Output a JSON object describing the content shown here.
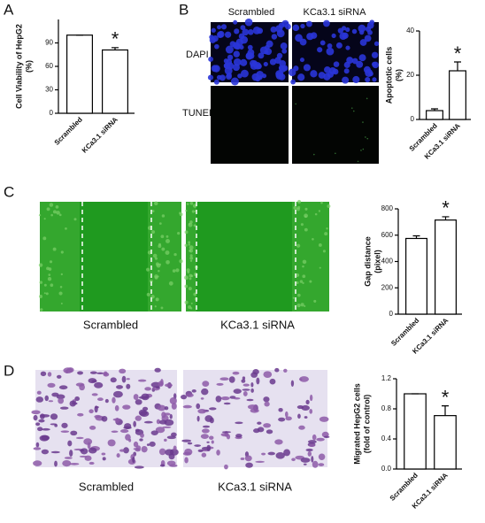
{
  "figure": {
    "panel_labels": [
      "A",
      "B",
      "C",
      "D"
    ],
    "panel_b_images": {
      "columns": [
        "Scrambled",
        "KCa3.1 siRNA"
      ],
      "rows": [
        "DAPI",
        "TUNEL"
      ]
    },
    "panel_c_images": {
      "columns": [
        "Scrambled",
        "KCa3.1 siRNA"
      ]
    },
    "panel_d_images": {
      "columns": [
        "Scrambled",
        "KCa3.1 siRNA"
      ]
    }
  },
  "chart_data": [
    {
      "type": "bar",
      "y_label": [
        "Cell Viability of HepG2",
        "(%)"
      ],
      "categories": [
        "Scrambled",
        "KCa3.1 siRNA"
      ],
      "values": [
        100,
        81
      ],
      "errors": [
        0,
        3
      ],
      "color": "#ffffff",
      "ylim": [
        0,
        120
      ],
      "yticks": [
        0,
        30,
        60,
        90
      ],
      "annotation": "*"
    },
    {
      "type": "bar",
      "y_label": [
        "Apoptotic cells",
        "(%)"
      ],
      "categories": [
        "Scrambled",
        "KCa3.1 siRNA"
      ],
      "values": [
        4,
        22
      ],
      "errors": [
        0.8,
        4
      ],
      "color": "#ffffff",
      "ylim": [
        0,
        40
      ],
      "yticks": [
        0,
        20,
        40
      ],
      "annotation": "*"
    },
    {
      "type": "bar",
      "y_label": [
        "Gap distance",
        "(pixel)"
      ],
      "categories": [
        "Scrambled",
        "KCa3.1 siRNA"
      ],
      "values": [
        575,
        715
      ],
      "errors": [
        20,
        25
      ],
      "color": "#ffffff",
      "ylim": [
        0,
        800
      ],
      "yticks": [
        0,
        200,
        400,
        600,
        800
      ],
      "annotation": "*"
    },
    {
      "type": "bar",
      "y_label": [
        "Migrated HepG2 cells",
        "(fold of control)"
      ],
      "categories": [
        "Scrambled",
        "KCa3.1 siRNA"
      ],
      "values": [
        1.0,
        0.71
      ],
      "errors": [
        0,
        0.13
      ],
      "color": "#ffffff",
      "ylim": [
        0,
        1.2
      ],
      "yticks": [
        {
          "value": 0,
          "label": "0.0"
        },
        0.4,
        0.8,
        1.2
      ],
      "annotation": "*"
    }
  ]
}
